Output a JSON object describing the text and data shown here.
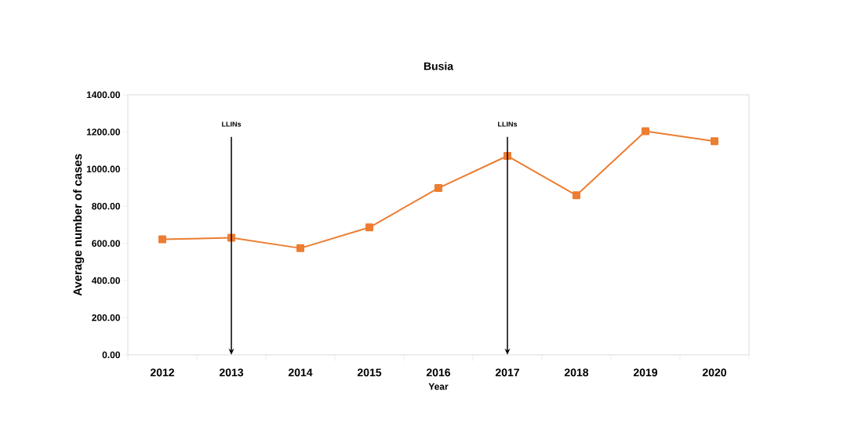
{
  "chart_data": {
    "type": "line",
    "title": "Busia",
    "xlabel": "Year",
    "ylabel": "Average number of cases",
    "categories": [
      "2012",
      "2013",
      "2014",
      "2015",
      "2016",
      "2017",
      "2018",
      "2019",
      "2020"
    ],
    "values": [
      622,
      630,
      574,
      686,
      898,
      1071,
      859,
      1204,
      1150
    ],
    "color": "#ed7d31",
    "marker": "square",
    "line_style": "solid",
    "ylim": [
      0,
      1400
    ],
    "yticks": [
      {
        "value": 0,
        "label": "0.00"
      },
      {
        "value": 200,
        "label": "200.00"
      },
      {
        "value": 400,
        "label": "400.00"
      },
      {
        "value": 600,
        "label": "600.00"
      },
      {
        "value": 800,
        "label": "800.00"
      },
      {
        "value": 1000,
        "label": "1000.00"
      },
      {
        "value": 1200,
        "label": "1200.00"
      },
      {
        "value": 1400,
        "label": "1400.00"
      }
    ],
    "ref_lines": [
      {
        "axis": "x",
        "value": "2013",
        "label": "LLINs"
      },
      {
        "axis": "x",
        "value": "2017",
        "label": "LLINs"
      }
    ]
  }
}
